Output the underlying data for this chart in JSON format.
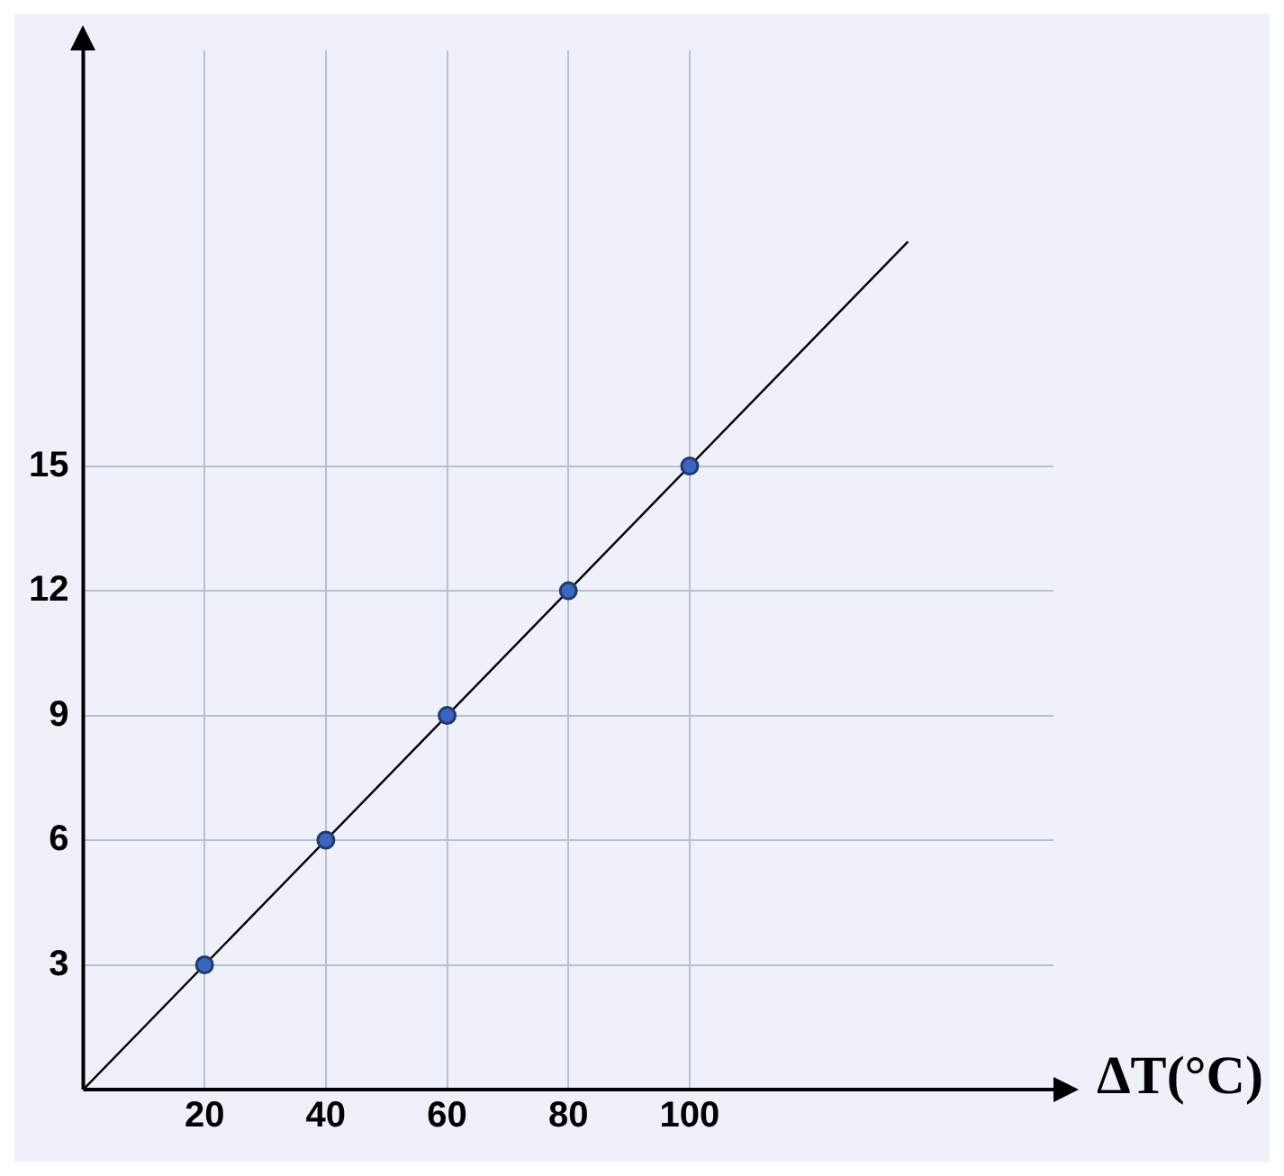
{
  "chart_data": {
    "type": "scatter",
    "xlabel": "ΔT(°C)",
    "xlim": [
      0,
      160
    ],
    "ylim": [
      0,
      25
    ],
    "xticks": [
      20,
      40,
      60,
      80,
      100
    ],
    "yticks": [
      3,
      6,
      9,
      12,
      15
    ],
    "grid": true,
    "legend": false,
    "marker": "circle",
    "series": [
      {
        "color": "#3a66c0",
        "x": [
          20,
          40,
          60,
          80,
          100
        ],
        "values": [
          3,
          6,
          9,
          12,
          15
        ]
      },
      {
        "type": "line",
        "color": "#000000",
        "x": [
          0,
          136
        ],
        "values": [
          0,
          20.4
        ],
        "marker": "none"
      }
    ]
  }
}
